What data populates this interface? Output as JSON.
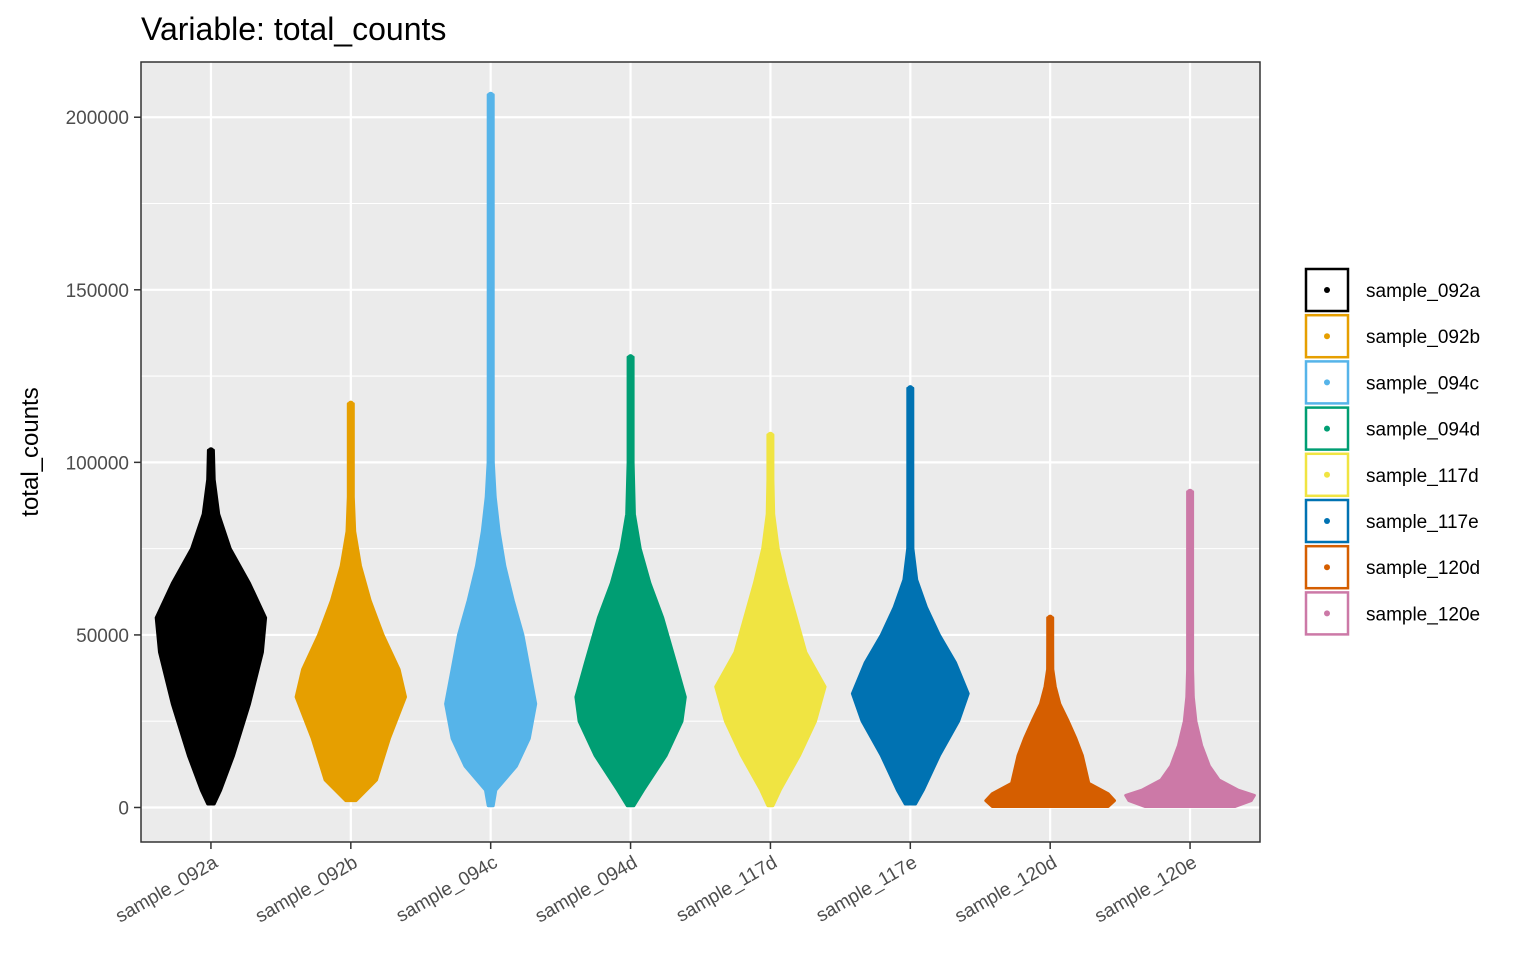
{
  "chart_data": {
    "type": "violin",
    "title": "Variable: total_counts",
    "ylabel": "total_counts",
    "xlabel": "",
    "ylim": [
      -10000,
      216000
    ],
    "yticks": [
      0,
      50000,
      100000,
      150000,
      200000
    ],
    "ytick_labels": [
      "0",
      "50000",
      "100000",
      "150000",
      "200000"
    ],
    "grid": true,
    "legend_position": "right",
    "categories": [
      "sample_092a",
      "sample_092b",
      "sample_094c",
      "sample_094d",
      "sample_117d",
      "sample_117e",
      "sample_120d",
      "sample_120e"
    ],
    "series": [
      {
        "name": "sample_092a",
        "color": "#000000",
        "min": 1000,
        "max": 103500,
        "density": [
          [
            1000,
            0.05
          ],
          [
            5000,
            0.15
          ],
          [
            15000,
            0.35
          ],
          [
            30000,
            0.6
          ],
          [
            45000,
            0.8
          ],
          [
            55000,
            0.85
          ],
          [
            65000,
            0.6
          ],
          [
            75000,
            0.3
          ],
          [
            85000,
            0.12
          ],
          [
            95000,
            0.05
          ],
          [
            103500,
            0.02
          ]
        ],
        "outliers": [
          103500
        ]
      },
      {
        "name": "sample_092b",
        "color": "#E69F00",
        "min": 2000,
        "max": 117000,
        "density": [
          [
            2000,
            0.08
          ],
          [
            8000,
            0.4
          ],
          [
            20000,
            0.6
          ],
          [
            32000,
            0.85
          ],
          [
            40000,
            0.75
          ],
          [
            50000,
            0.5
          ],
          [
            60000,
            0.3
          ],
          [
            70000,
            0.15
          ],
          [
            80000,
            0.06
          ],
          [
            90000,
            0.03
          ],
          [
            100000,
            0.015
          ],
          [
            117000,
            0.01
          ]
        ],
        "outliers": [
          117000,
          104000,
          101000
        ]
      },
      {
        "name": "sample_094c",
        "color": "#56B4E9",
        "min": 500,
        "max": 206500,
        "density": [
          [
            500,
            0.02
          ],
          [
            5000,
            0.08
          ],
          [
            12000,
            0.4
          ],
          [
            20000,
            0.6
          ],
          [
            30000,
            0.7
          ],
          [
            40000,
            0.6
          ],
          [
            50000,
            0.5
          ],
          [
            60000,
            0.35
          ],
          [
            70000,
            0.22
          ],
          [
            80000,
            0.13
          ],
          [
            90000,
            0.07
          ],
          [
            100000,
            0.04
          ],
          [
            115000,
            0.02
          ],
          [
            130000,
            0.01
          ],
          [
            206500,
            0.005
          ]
        ],
        "outliers": [
          206500,
          151500,
          137500,
          134000,
          129000
        ]
      },
      {
        "name": "sample_094d",
        "color": "#009E73",
        "min": 500,
        "max": 130500,
        "density": [
          [
            500,
            0.05
          ],
          [
            5000,
            0.2
          ],
          [
            15000,
            0.55
          ],
          [
            25000,
            0.8
          ],
          [
            32000,
            0.85
          ],
          [
            42000,
            0.7
          ],
          [
            55000,
            0.5
          ],
          [
            65000,
            0.3
          ],
          [
            75000,
            0.15
          ],
          [
            85000,
            0.06
          ],
          [
            100000,
            0.02
          ],
          [
            130500,
            0.008
          ]
        ],
        "outliers": [
          130500,
          120000,
          116000
        ]
      },
      {
        "name": "sample_117d",
        "color": "#F0E442",
        "min": 500,
        "max": 108000,
        "density": [
          [
            500,
            0.03
          ],
          [
            5000,
            0.15
          ],
          [
            15000,
            0.45
          ],
          [
            25000,
            0.7
          ],
          [
            35000,
            0.85
          ],
          [
            45000,
            0.55
          ],
          [
            55000,
            0.4
          ],
          [
            65000,
            0.25
          ],
          [
            75000,
            0.12
          ],
          [
            85000,
            0.05
          ],
          [
            95000,
            0.03
          ],
          [
            108000,
            0.01
          ]
        ],
        "outliers": [
          108000
        ]
      },
      {
        "name": "sample_117e",
        "color": "#0072B2",
        "min": 1000,
        "max": 121500,
        "density": [
          [
            1000,
            0.08
          ],
          [
            5000,
            0.2
          ],
          [
            15000,
            0.45
          ],
          [
            25000,
            0.75
          ],
          [
            33000,
            0.9
          ],
          [
            42000,
            0.7
          ],
          [
            50000,
            0.45
          ],
          [
            58000,
            0.25
          ],
          [
            66000,
            0.1
          ],
          [
            75000,
            0.04
          ],
          [
            90000,
            0.015
          ],
          [
            121500,
            0.008
          ]
        ],
        "outliers": [
          121500,
          117000,
          100000
        ]
      },
      {
        "name": "sample_120d",
        "color": "#D55E00",
        "min": 300,
        "max": 55000,
        "density": [
          [
            300,
            0.9
          ],
          [
            2000,
            1.0
          ],
          [
            4000,
            0.9
          ],
          [
            7000,
            0.6
          ],
          [
            11000,
            0.55
          ],
          [
            15000,
            0.5
          ],
          [
            20000,
            0.4
          ],
          [
            25000,
            0.28
          ],
          [
            30000,
            0.15
          ],
          [
            35000,
            0.08
          ],
          [
            40000,
            0.04
          ],
          [
            47000,
            0.02
          ],
          [
            55000,
            0.01
          ]
        ],
        "outliers": [
          55000
        ]
      },
      {
        "name": "sample_120e",
        "color": "#CC79A7",
        "min": 300,
        "max": 91500,
        "density": [
          [
            300,
            0.7
          ],
          [
            2000,
            0.95
          ],
          [
            3500,
            1.0
          ],
          [
            5000,
            0.75
          ],
          [
            8000,
            0.45
          ],
          [
            12000,
            0.3
          ],
          [
            18000,
            0.18
          ],
          [
            25000,
            0.09
          ],
          [
            32000,
            0.05
          ],
          [
            40000,
            0.02
          ],
          [
            50000,
            0.01
          ],
          [
            91500,
            0.005
          ]
        ],
        "outliers": [
          91500,
          50000,
          43000
        ]
      }
    ]
  }
}
